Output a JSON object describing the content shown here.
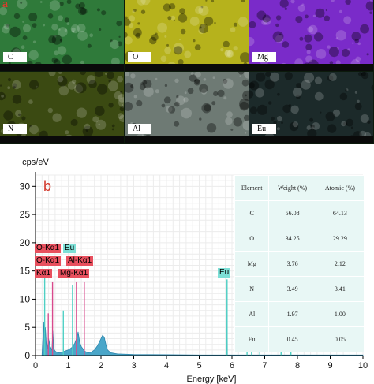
{
  "panel_a": {
    "letter": "a",
    "tiles": [
      {
        "label": "C",
        "color": "#2f7a3a"
      },
      {
        "label": "O",
        "color": "#b6b21c"
      },
      {
        "label": "Mg",
        "color": "#7a2bc9"
      },
      {
        "label": "N",
        "color": "#3b4a12"
      },
      {
        "label": "Al",
        "color": "#6e7a74"
      },
      {
        "label": "Eu",
        "color": "#1c2a2a"
      }
    ]
  },
  "panel_b_letter": "b",
  "peak_labels": [
    {
      "text": "O-Kα1",
      "color": "red"
    },
    {
      "text": "Eu",
      "color": "cyan"
    },
    {
      "text": "O-Kα1",
      "color": "red"
    },
    {
      "text": "Al-Kα1",
      "color": "red"
    },
    {
      "text": "Kα1",
      "color": "red"
    },
    {
      "text": "Mg-Kα1",
      "color": "red"
    },
    {
      "text": "Eu",
      "color": "cyan"
    }
  ],
  "table": {
    "headers": [
      "Element",
      "Weight (%)",
      "Atomic (%)"
    ],
    "rows": [
      [
        "C",
        "56.08",
        "64.13"
      ],
      [
        "O",
        "34.25",
        "29.29"
      ],
      [
        "Mg",
        "3.76",
        "2.12"
      ],
      [
        "N",
        "3.49",
        "3.41"
      ],
      [
        "Al",
        "1.97",
        "1.00"
      ],
      [
        "Eu",
        "0.45",
        "0.05"
      ]
    ]
  },
  "chart_data": {
    "type": "line",
    "xlabel": "Energy [keV]",
    "ylabel": "cps/eV",
    "xlim": [
      0,
      10
    ],
    "ylim": [
      0,
      32
    ],
    "xticks": [
      0,
      1,
      2,
      3,
      4,
      5,
      6,
      7,
      8,
      9,
      10
    ],
    "yticks": [
      0,
      5,
      10,
      15,
      20,
      25,
      30
    ],
    "grid": true,
    "spectrum": {
      "x": [
        0.2,
        0.25,
        0.28,
        0.3,
        0.33,
        0.36,
        0.4,
        0.45,
        0.5,
        0.53,
        0.56,
        0.6,
        0.65,
        0.7,
        0.8,
        0.9,
        1.0,
        1.1,
        1.2,
        1.25,
        1.3,
        1.35,
        1.4,
        1.5,
        1.6,
        1.7,
        1.8,
        1.9,
        2.0,
        2.05,
        2.1,
        2.15,
        2.2,
        2.3,
        2.5,
        3.0,
        4.0,
        5.0,
        5.84,
        5.85,
        5.86,
        6.0,
        6.5,
        7.0,
        8.0,
        9.0,
        10.0
      ],
      "y": [
        0.3,
        6.0,
        1.5,
        5.0,
        2.0,
        1.2,
        3.0,
        1.6,
        1.0,
        4.4,
        1.2,
        0.8,
        0.6,
        0.5,
        0.6,
        0.8,
        1.0,
        1.4,
        2.2,
        3.0,
        4.2,
        2.4,
        1.6,
        0.8,
        0.5,
        0.6,
        1.0,
        1.8,
        3.0,
        3.6,
        3.2,
        2.0,
        1.0,
        0.5,
        0.3,
        0.2,
        0.15,
        0.1,
        0.1,
        13.5,
        0.1,
        0.1,
        0.1,
        0.1,
        0.1,
        0.1,
        0.1
      ]
    },
    "lines": [
      {
        "x": 0.28,
        "y": 14.0,
        "color": "#4fd0c4"
      },
      {
        "x": 0.39,
        "y": 7.5,
        "color": "#d84a8c"
      },
      {
        "x": 0.52,
        "y": 13.0,
        "color": "#d84a8c"
      },
      {
        "x": 0.85,
        "y": 8.0,
        "color": "#4fd0c4"
      },
      {
        "x": 1.13,
        "y": 12.5,
        "color": "#4fd0c4"
      },
      {
        "x": 1.25,
        "y": 13.0,
        "color": "#d84a8c"
      },
      {
        "x": 1.49,
        "y": 13.0,
        "color": "#d84a8c"
      },
      {
        "x": 5.85,
        "y": 13.5,
        "color": "#4fd0c4"
      },
      {
        "x": 6.46,
        "y": 3.2,
        "color": "#4fd0c4"
      },
      {
        "x": 6.6,
        "y": 2.4,
        "color": "#4fd0c4"
      },
      {
        "x": 6.85,
        "y": 2.0,
        "color": "#4fd0c4"
      },
      {
        "x": 7.5,
        "y": 1.0,
        "color": "#4fd0c4"
      },
      {
        "x": 7.8,
        "y": 0.7,
        "color": "#4fd0c4"
      }
    ]
  }
}
